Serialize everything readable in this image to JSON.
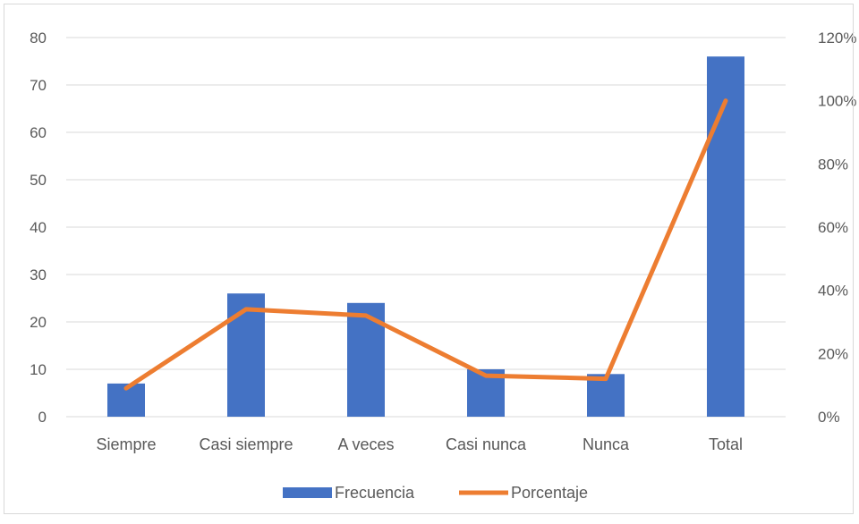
{
  "chart_data": {
    "type": "bar",
    "categories": [
      "Siempre",
      "Casi siempre",
      "A veces",
      "Casi nunca",
      "Nunca",
      "Total"
    ],
    "series": [
      {
        "name": "Frecuencia",
        "type": "bar",
        "axis": "left",
        "values": [
          7,
          26,
          24,
          10,
          9,
          76
        ],
        "color": "#4472C4"
      },
      {
        "name": "Porcentaje",
        "type": "line",
        "axis": "right",
        "values": [
          0.09,
          0.34,
          0.32,
          0.13,
          0.12,
          1.0
        ],
        "color": "#ED7D31"
      }
    ],
    "y_left": {
      "min": 0,
      "max": 80,
      "step": 10,
      "ticks": [
        "0",
        "10",
        "20",
        "30",
        "40",
        "50",
        "60",
        "70",
        "80"
      ]
    },
    "y_right": {
      "min": 0,
      "max": 1.2,
      "step": 0.2,
      "ticks": [
        "0%",
        "20%",
        "40%",
        "60%",
        "80%",
        "100%",
        "120%"
      ]
    },
    "grid": true,
    "legend_position": "bottom",
    "colors": {
      "grid": "#d9d9d9",
      "text": "#595959",
      "border": "#d9d9d9"
    }
  }
}
